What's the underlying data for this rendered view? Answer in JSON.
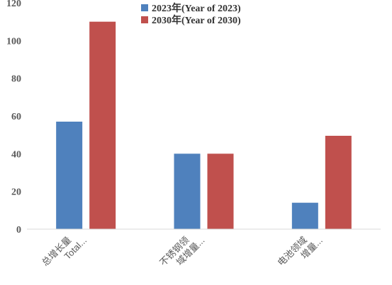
{
  "chart_data": {
    "type": "bar",
    "categories": [
      [
        "总增长量",
        "Total..."
      ],
      [
        "不锈钢领",
        "域增量..."
      ],
      [
        "电池领域",
        "增量..."
      ]
    ],
    "series": [
      {
        "name": "2023年(Year of 2023)",
        "color": "#4f81bd",
        "values": [
          57,
          40,
          14
        ]
      },
      {
        "name": "2030年(Year of 2030)",
        "color": "#c0504d",
        "values": [
          110,
          40,
          49.5
        ]
      }
    ],
    "ylim": [
      0,
      120
    ],
    "yticks": [
      0,
      20,
      40,
      60,
      80,
      100,
      120
    ],
    "grid": false,
    "legend_position": "top"
  }
}
